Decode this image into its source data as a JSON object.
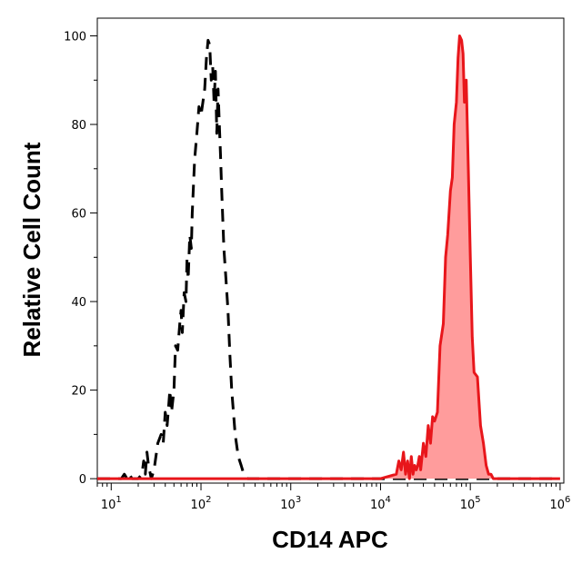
{
  "chart_data": {
    "type": "area",
    "title": "",
    "xlabel": "CD14 APC",
    "ylabel": "Relative Cell Count",
    "x_scale": "log",
    "xlim": [
      7,
      1100000
    ],
    "ylim": [
      -1,
      104
    ],
    "x_ticks": [
      {
        "value": 10,
        "base": "10",
        "exp": "1"
      },
      {
        "value": 100,
        "base": "10",
        "exp": "2"
      },
      {
        "value": 1000,
        "base": "10",
        "exp": "3"
      },
      {
        "value": 10000,
        "base": "10",
        "exp": "4"
      },
      {
        "value": 100000,
        "base": "10",
        "exp": "5"
      },
      {
        "value": 1000000,
        "base": "10",
        "exp": "6"
      }
    ],
    "y_ticks": [
      0,
      20,
      40,
      60,
      80,
      100
    ],
    "grid": false,
    "series": [
      {
        "style": "dashed",
        "color": "#000000",
        "fill": "none",
        "x": [
          7,
          10,
          13,
          14,
          15,
          16,
          17,
          20,
          22,
          23,
          24,
          25,
          26,
          28,
          30,
          33,
          36,
          38,
          40,
          42,
          45,
          47,
          50,
          52,
          55,
          58,
          60,
          62,
          65,
          68,
          70,
          72,
          75,
          78,
          80,
          85,
          90,
          95,
          100,
          105,
          110,
          115,
          120,
          125,
          130,
          135,
          140,
          145,
          150,
          155,
          160,
          165,
          170,
          180,
          190,
          200,
          210,
          220,
          240,
          260,
          280,
          300,
          330,
          360,
          400,
          450,
          500,
          600,
          700,
          1000,
          10000,
          100000,
          1000000
        ],
        "y": [
          0,
          0,
          0,
          1,
          0,
          1,
          0,
          0,
          1,
          4,
          1,
          6,
          3,
          0,
          2,
          8,
          10,
          8,
          15,
          12,
          20,
          15,
          20,
          30,
          29,
          35,
          38,
          33,
          42,
          40,
          50,
          45,
          55,
          52,
          60,
          72,
          78,
          84,
          82,
          85,
          88,
          95,
          99,
          98,
          90,
          93,
          85,
          92,
          78,
          88,
          80,
          73,
          65,
          52,
          45,
          38,
          28,
          20,
          10,
          5,
          3,
          1,
          0,
          0,
          0,
          0,
          0,
          0,
          0,
          0,
          0,
          0,
          0
        ]
      },
      {
        "style": "solid",
        "color": "#e8161b",
        "fill": "#ff9c9c",
        "x": [
          7,
          100,
          1000,
          10000,
          15000,
          16000,
          17000,
          18000,
          19000,
          20000,
          21000,
          22000,
          23000,
          24000,
          25000,
          26000,
          27000,
          28000,
          30000,
          32000,
          34000,
          36000,
          38000,
          40000,
          43000,
          46000,
          50000,
          53000,
          56000,
          60000,
          63000,
          66000,
          70000,
          73000,
          76000,
          80000,
          83000,
          86000,
          90000,
          95000,
          100000,
          105000,
          110000,
          120000,
          130000,
          140000,
          150000,
          160000,
          170000,
          180000,
          200000,
          300000,
          1000000
        ],
        "y": [
          0,
          0,
          0,
          0,
          1,
          4,
          2,
          6,
          1,
          4,
          0,
          5,
          1,
          3,
          2,
          3,
          5,
          2,
          8,
          5,
          12,
          8,
          14,
          13,
          15,
          30,
          35,
          50,
          55,
          65,
          68,
          80,
          85,
          95,
          100,
          99,
          96,
          85,
          90,
          70,
          50,
          32,
          24,
          23,
          12,
          8,
          3,
          1,
          1,
          0,
          0,
          0,
          0
        ]
      }
    ]
  }
}
